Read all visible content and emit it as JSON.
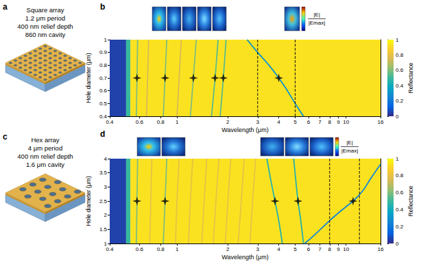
{
  "illustrations": [
    {
      "label": "a",
      "lines": [
        "Square array",
        "1.2 μm period",
        "400 nm relief depth",
        "860 nm cavity"
      ]
    },
    {
      "label": "c",
      "lines": [
        "Hex array",
        "4 μm period",
        "400 nm relief depth",
        "1.6 μm cavity"
      ]
    }
  ],
  "chart_data": [
    {
      "type": "heatmap",
      "title": "b",
      "x_label": "Wavelength (μm)",
      "y_label": "Hole diameter (μm)",
      "log": "x",
      "xlim": [
        0.4,
        16
      ],
      "xticks": [
        0.4,
        0.6,
        0.8,
        1,
        2,
        3,
        4,
        5,
        6,
        7,
        8,
        9,
        10,
        16
      ],
      "ylim": [
        0.4,
        1
      ],
      "yticks": [
        0.4,
        0.5,
        0.6,
        0.7,
        0.8,
        0.9,
        1
      ],
      "cells": [
        [
          0.4,
          0.5,
          0.4,
          1,
          0.05
        ],
        [
          0.5,
          0.53,
          0.4,
          1,
          0.5
        ],
        [
          0.53,
          16,
          0.4,
          1,
          0.93
        ]
      ],
      "resonances": [
        {
          "reflectance": 0.6,
          "values": [
            [
              0.575,
              0.4
            ],
            [
              0.58,
              0.7
            ],
            [
              0.585,
              1
            ]
          ]
        },
        {
          "reflectance": 0.75,
          "values": [
            [
              0.66,
              0.4
            ],
            [
              0.67,
              0.7
            ],
            [
              0.68,
              1
            ]
          ]
        },
        {
          "reflectance": 0.6,
          "values": [
            [
              0.83,
              0.4
            ],
            [
              0.85,
              0.7
            ],
            [
              0.87,
              1
            ]
          ]
        },
        {
          "reflectance": 0.75,
          "values": [
            [
              1.0,
              0.4
            ],
            [
              1.03,
              0.7
            ],
            [
              1.06,
              1
            ]
          ]
        },
        {
          "reflectance": 0.6,
          "values": [
            [
              1.2,
              0.4
            ],
            [
              1.25,
              0.7
            ],
            [
              1.3,
              1
            ]
          ]
        },
        {
          "reflectance": 0.55,
          "values": [
            [
              1.6,
              0.4
            ],
            [
              1.68,
              0.7
            ],
            [
              1.75,
              1
            ]
          ]
        },
        {
          "reflectance": 0.55,
          "values": [
            [
              1.8,
              0.4
            ],
            [
              1.88,
              0.7
            ],
            [
              1.95,
              1
            ]
          ]
        },
        {
          "reflectance": 0.3,
          "values": [
            [
              2.6,
              1.0
            ],
            [
              3.0,
              0.9
            ],
            [
              3.5,
              0.8
            ],
            [
              4.0,
              0.7
            ],
            [
              4.5,
              0.6
            ],
            [
              5.0,
              0.5
            ],
            [
              5.6,
              0.4
            ]
          ]
        }
      ],
      "marked_modes": {
        "marker": "star",
        "values": [
          [
            0.58,
            0.7
          ],
          [
            0.85,
            0.7
          ],
          [
            1.25,
            0.7
          ],
          [
            1.68,
            0.7
          ],
          [
            1.88,
            0.7
          ],
          [
            4.0,
            0.7
          ]
        ]
      },
      "dashed_wavelengths": [
        3,
        5
      ],
      "colorbar": {
        "label": "Reflectance",
        "range": [
          0,
          1
        ],
        "ticks": [
          0,
          0.2,
          0.4,
          0.6,
          0.8,
          1
        ]
      },
      "field_colorbar_label": [
        "|E|",
        "|Emax|"
      ]
    },
    {
      "type": "heatmap",
      "title": "d",
      "x_label": "Wavelength (μm)",
      "y_label": "Hole diameter (μm)",
      "log": "x",
      "xlim": [
        0.4,
        16
      ],
      "xticks": [
        0.4,
        0.6,
        0.8,
        1,
        2,
        3,
        4,
        5,
        6,
        7,
        8,
        9,
        10,
        16
      ],
      "ylim": [
        1,
        4
      ],
      "yticks": [
        1,
        1.5,
        2,
        2.5,
        3,
        3.5,
        4
      ],
      "cells": [
        [
          0.4,
          0.5,
          1,
          4,
          0.05
        ],
        [
          0.5,
          0.53,
          1,
          4,
          0.5
        ],
        [
          0.53,
          16,
          1,
          4,
          0.93
        ]
      ],
      "resonances": [
        {
          "reflectance": 0.6,
          "values": [
            [
              0.575,
              1
            ],
            [
              0.58,
              2.5
            ],
            [
              0.585,
              4
            ]
          ]
        },
        {
          "reflectance": 0.8,
          "values": [
            [
              0.69,
              1
            ],
            [
              0.7,
              2.5
            ],
            [
              0.71,
              4
            ]
          ]
        },
        {
          "reflectance": 0.6,
          "values": [
            [
              0.83,
              1
            ],
            [
              0.85,
              2.5
            ],
            [
              0.87,
              4
            ]
          ]
        },
        {
          "reflectance": 0.8,
          "values": [
            [
              0.98,
              1
            ],
            [
              1.0,
              2.5
            ],
            [
              1.03,
              4
            ]
          ]
        },
        {
          "reflectance": 0.8,
          "values": [
            [
              1.17,
              1
            ],
            [
              1.2,
              2.5
            ],
            [
              1.24,
              4
            ]
          ]
        },
        {
          "reflectance": 0.8,
          "values": [
            [
              1.4,
              1
            ],
            [
              1.45,
              2.5
            ],
            [
              1.5,
              4
            ]
          ]
        },
        {
          "reflectance": 0.8,
          "values": [
            [
              1.64,
              1
            ],
            [
              1.7,
              2.5
            ],
            [
              1.77,
              4
            ]
          ]
        },
        {
          "reflectance": 0.8,
          "values": [
            [
              1.93,
              1
            ],
            [
              2.0,
              2.5
            ],
            [
              2.08,
              4
            ]
          ]
        },
        {
          "reflectance": 0.8,
          "values": [
            [
              2.3,
              1
            ],
            [
              2.4,
              2.5
            ],
            [
              2.5,
              4
            ]
          ]
        },
        {
          "reflectance": 0.8,
          "values": [
            [
              2.7,
              1
            ],
            [
              2.8,
              2.5
            ],
            [
              2.92,
              4
            ]
          ]
        },
        {
          "reflectance": 0.45,
          "values": [
            [
              4.2,
              1.0
            ],
            [
              4.0,
              1.8
            ],
            [
              3.8,
              2.5
            ],
            [
              3.6,
              3.2
            ],
            [
              3.4,
              4.0
            ]
          ]
        },
        {
          "reflectance": 0.45,
          "values": [
            [
              5.6,
              1.0
            ],
            [
              5.4,
              1.8
            ],
            [
              5.2,
              2.5
            ],
            [
              5.05,
              3.2
            ],
            [
              4.9,
              4.0
            ]
          ]
        },
        {
          "reflectance": 0.25,
          "values": [
            [
              5.7,
              1.0
            ],
            [
              6.5,
              1.3
            ],
            [
              7.5,
              1.65
            ],
            [
              8.5,
              1.95
            ],
            [
              10,
              2.3
            ],
            [
              11,
              2.5
            ],
            [
              12.5,
              2.85
            ],
            [
              14,
              3.3
            ],
            [
              16,
              3.8
            ]
          ]
        }
      ],
      "marked_modes": {
        "marker": "star",
        "values": [
          [
            0.58,
            2.5
          ],
          [
            0.85,
            2.5
          ],
          [
            3.8,
            2.5
          ],
          [
            5.2,
            2.5
          ],
          [
            11,
            2.5
          ]
        ]
      },
      "dashed_wavelengths": [
        8,
        12
      ],
      "colorbar": {
        "label": "Reflectance",
        "range": [
          0,
          1
        ],
        "ticks": [
          0,
          0.2,
          0.4,
          0.6,
          0.8,
          1
        ]
      },
      "field_colorbar_label": [
        "|E|",
        "|Emax|"
      ]
    }
  ]
}
